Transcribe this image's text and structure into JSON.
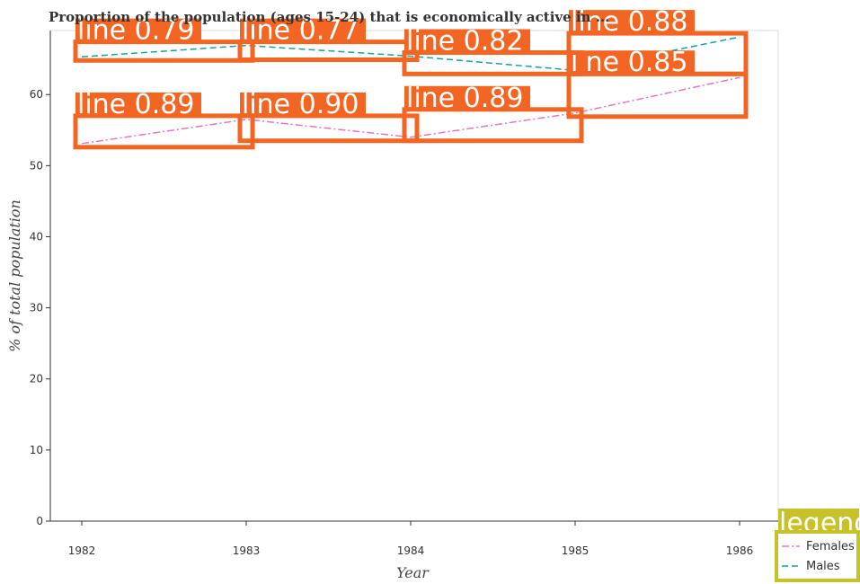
{
  "chart_data": {
    "type": "line",
    "title": "Proportion of the population (ages 15-24) that is economically active in ...",
    "xlabel": "Year",
    "ylabel": "% of total population",
    "x": [
      "1982",
      "1983",
      "1984",
      "1985",
      "1986"
    ],
    "ylim": [
      0,
      69
    ],
    "yticks": [
      0,
      10,
      20,
      30,
      40,
      50,
      60
    ],
    "grid": false,
    "legend": {
      "title": "legend",
      "position": "bottom-right"
    },
    "series": [
      {
        "name": "Females",
        "values": [
          53.1,
          56.5,
          54.0,
          57.4,
          62.4
        ],
        "color": "#e377c2",
        "dash": "dashdot"
      },
      {
        "name": "Males",
        "values": [
          65.3,
          66.9,
          65.4,
          63.4,
          68.1
        ],
        "color": "#17a2a2",
        "dash": "dashed"
      }
    ],
    "annotations": [
      {
        "label": "line 0.89",
        "series": "Females",
        "x": "1982"
      },
      {
        "label": "line 0.90",
        "series": "Females",
        "x": "1983"
      },
      {
        "label": "line 0.89",
        "series": "Females",
        "x": "1984"
      },
      {
        "label": "line 0.85",
        "series": "Females",
        "x": "1985"
      },
      {
        "label": "line 0.79",
        "series": "Males",
        "x": "1982"
      },
      {
        "label": "line 0.77",
        "series": "Males",
        "x": "1983"
      },
      {
        "label": "line 0.82",
        "series": "Males",
        "x": "1984"
      },
      {
        "label": "line 0.88",
        "series": "Males",
        "x": "1985"
      }
    ],
    "colors": {
      "annotation": "#f26522",
      "legend_box": "#c8c22a",
      "axis": "#333333",
      "frame": "#dddddd"
    }
  }
}
